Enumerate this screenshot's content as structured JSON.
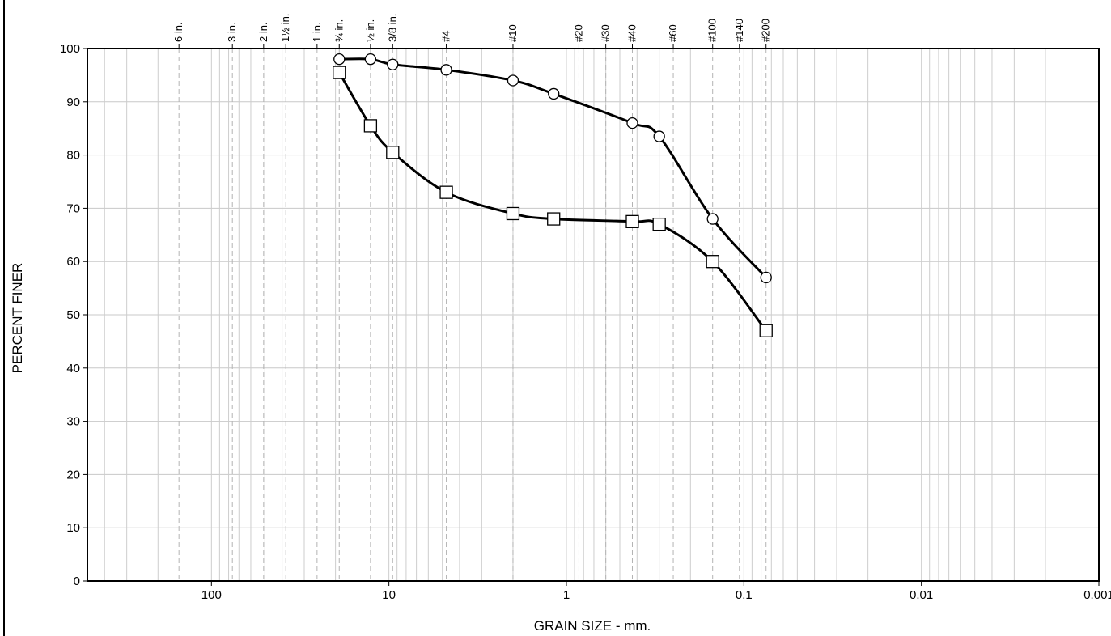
{
  "chart_data": {
    "type": "line",
    "title": "",
    "xlabel": "GRAIN SIZE - mm.",
    "ylabel": "PERCENT FINER",
    "x_scale": "log",
    "x_reversed": true,
    "xlim": [
      500,
      0.001
    ],
    "ylim": [
      0,
      100
    ],
    "grid": true,
    "y_ticks": [
      0,
      10,
      20,
      30,
      40,
      50,
      60,
      70,
      80,
      90,
      100
    ],
    "x_tick_labels": [
      {
        "value": 100,
        "label": "100"
      },
      {
        "value": 10,
        "label": "10"
      },
      {
        "value": 1,
        "label": "1"
      },
      {
        "value": 0.1,
        "label": "0.1"
      },
      {
        "value": 0.01,
        "label": "0.01"
      },
      {
        "value": 0.001,
        "label": "0.001"
      }
    ],
    "sieve_labels": [
      {
        "label": "6 in.",
        "size": 152.4
      },
      {
        "label": "3 in.",
        "size": 76.2
      },
      {
        "label": "2 in.",
        "size": 50.8
      },
      {
        "label": "1½ in.",
        "size": 38.1
      },
      {
        "label": "1 in.",
        "size": 25.4
      },
      {
        "label": "¾ in.",
        "size": 19.05
      },
      {
        "label": "½ in.",
        "size": 12.7
      },
      {
        "label": "3/8 in.",
        "size": 9.525
      },
      {
        "label": "#4",
        "size": 4.75
      },
      {
        "label": "#10",
        "size": 2.0
      },
      {
        "label": "#20",
        "size": 0.85
      },
      {
        "label": "#30",
        "size": 0.6
      },
      {
        "label": "#40",
        "size": 0.425
      },
      {
        "label": "#60",
        "size": 0.25
      },
      {
        "label": "#100",
        "size": 0.15
      },
      {
        "label": "#140",
        "size": 0.106
      },
      {
        "label": "#200",
        "size": 0.075
      }
    ],
    "series": [
      {
        "marker": "circle",
        "x": [
          19.05,
          12.7,
          9.525,
          4.75,
          2.0,
          1.18,
          0.425,
          0.3,
          0.15,
          0.075
        ],
        "y": [
          98,
          98,
          97,
          96,
          94,
          91.5,
          86,
          83.5,
          68,
          57
        ]
      },
      {
        "marker": "square",
        "x": [
          19.05,
          12.7,
          9.525,
          4.75,
          2.0,
          1.18,
          0.425,
          0.3,
          0.15,
          0.075
        ],
        "y": [
          95.5,
          85.5,
          80.5,
          73,
          69,
          68,
          67.5,
          67,
          60,
          47
        ]
      }
    ]
  }
}
